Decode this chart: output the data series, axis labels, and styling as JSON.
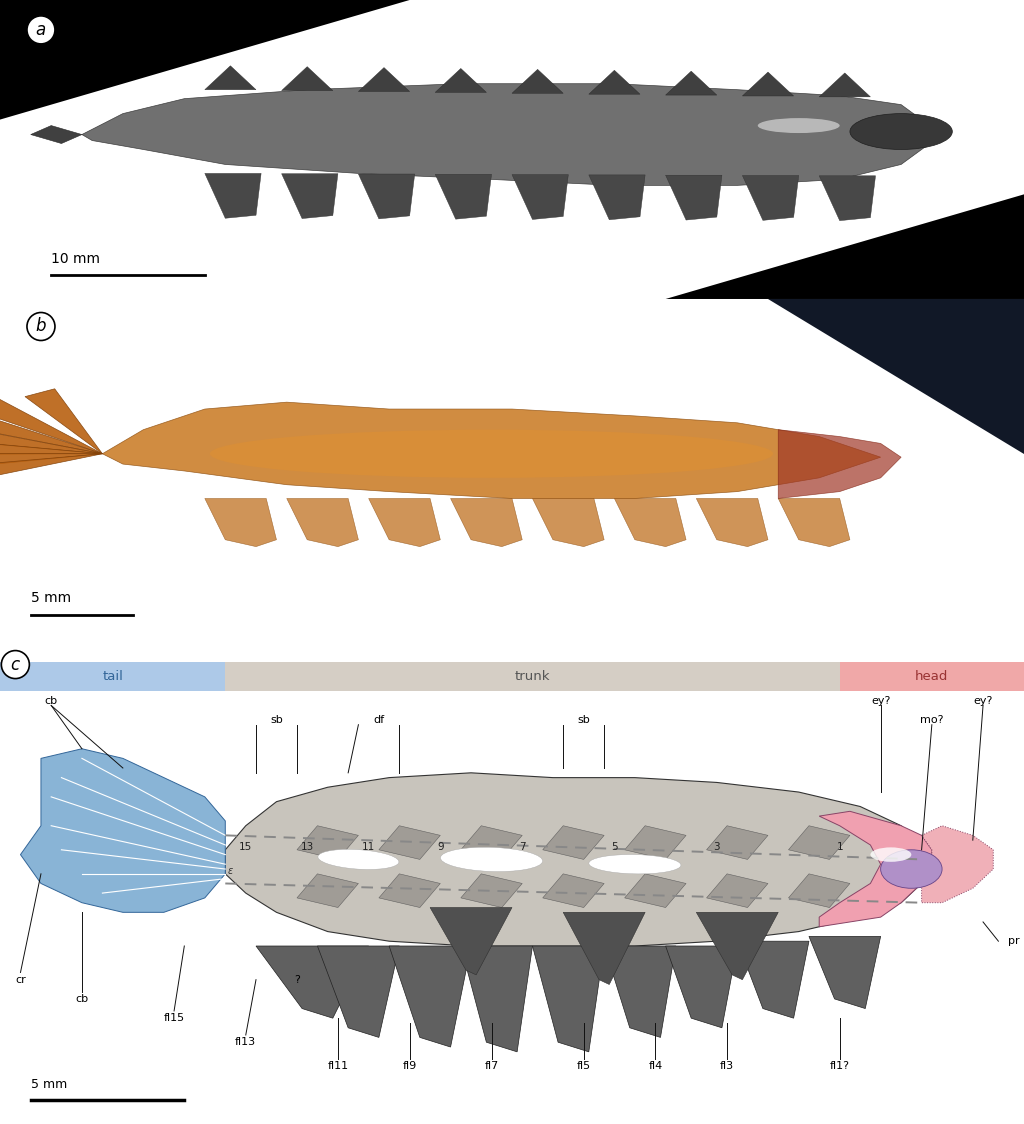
{
  "fig_width": 10.24,
  "fig_height": 11.24,
  "panel_a_bg": "#b0b0b0",
  "panel_a_scale": "10 mm",
  "panel_b_bg": "#e8e2d8",
  "panel_b_scale": "5 mm",
  "panel_c_tail_color": "#adc9e8",
  "panel_c_trunk_color": "#d5cec5",
  "panel_c_head_color": "#f0a8a8",
  "panel_c_scale": "5 mm",
  "body_fill": "#c8c4bc",
  "body_edge": "#333333",
  "flap_fill": "#9a9590",
  "flap_dark": "#606060",
  "tail_blue": "#89b4d6",
  "tail_edge": "#336699",
  "head_pink": "#f0a0b0",
  "head_ext_pink": "#f0b0b8",
  "head_purple": "#b090c8",
  "white_inner": "#ffffff",
  "dashed_color": "#888888",
  "line_color": "#111111"
}
